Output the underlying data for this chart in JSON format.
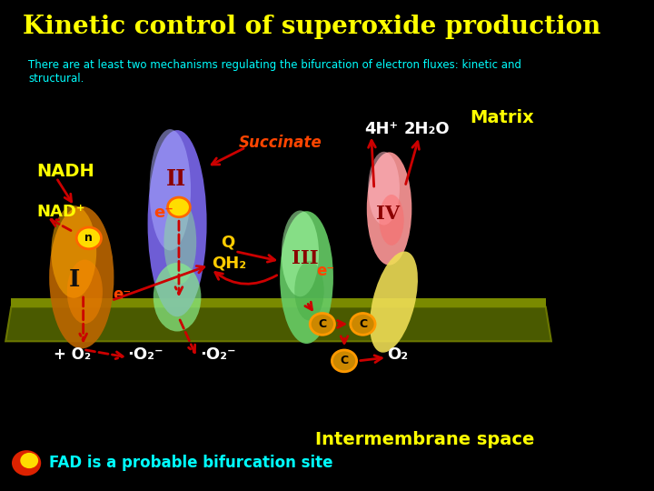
{
  "title": "Kinetic control of superoxide production",
  "subtitle": "There are at least two mechanisms regulating the bifurcation of electron fluxes: kinetic and\nstructural.",
  "title_color": "#FFFF00",
  "subtitle_color": "#00FFFF",
  "background_color": "#000000",
  "membrane_color": "#556B00",
  "matrix_label": "Matrix",
  "matrix_color": "#FFFF00",
  "intermembrane_label": "Intermembrane space",
  "intermembrane_color": "#FFFF00",
  "fad_label": "FAD is a probable bifurcation site",
  "fad_color": "#00FFFF"
}
